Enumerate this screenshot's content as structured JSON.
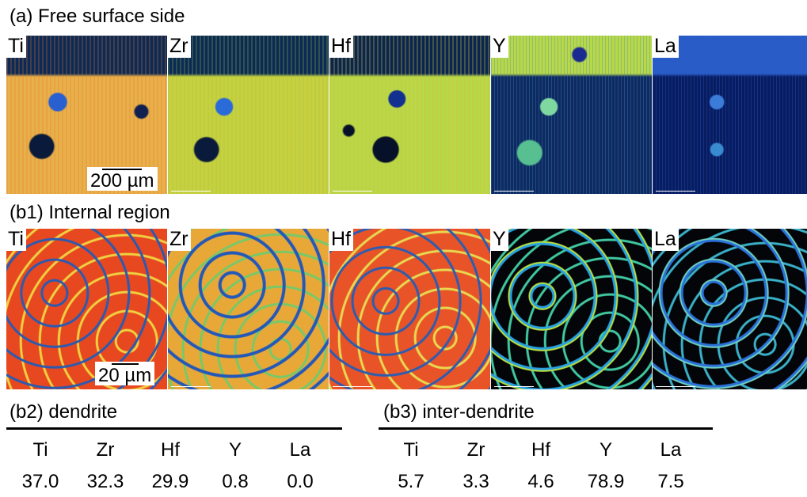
{
  "section_a": {
    "title": "(a) Free surface side",
    "scale_label": "200 µm",
    "elements": [
      "Ti",
      "Zr",
      "Hf",
      "Y",
      "La"
    ]
  },
  "section_b1": {
    "title": "(b1) Internal region",
    "scale_label": "20 µm",
    "elements": [
      "Ti",
      "Zr",
      "Hf",
      "Y",
      "La"
    ]
  },
  "table_b2": {
    "title": "(b2) dendrite",
    "headers": [
      "Ti",
      "Zr",
      "Hf",
      "Y",
      "La"
    ],
    "values": [
      "37.0",
      "32.3",
      "29.9",
      "0.8",
      "0.0"
    ]
  },
  "table_b3": {
    "title": "(b3) inter-dendrite",
    "headers": [
      "Ti",
      "Zr",
      "Hf",
      "Y",
      "La"
    ],
    "values": [
      "5.7",
      "3.3",
      "4.6",
      "78.9",
      "7.5"
    ]
  }
}
